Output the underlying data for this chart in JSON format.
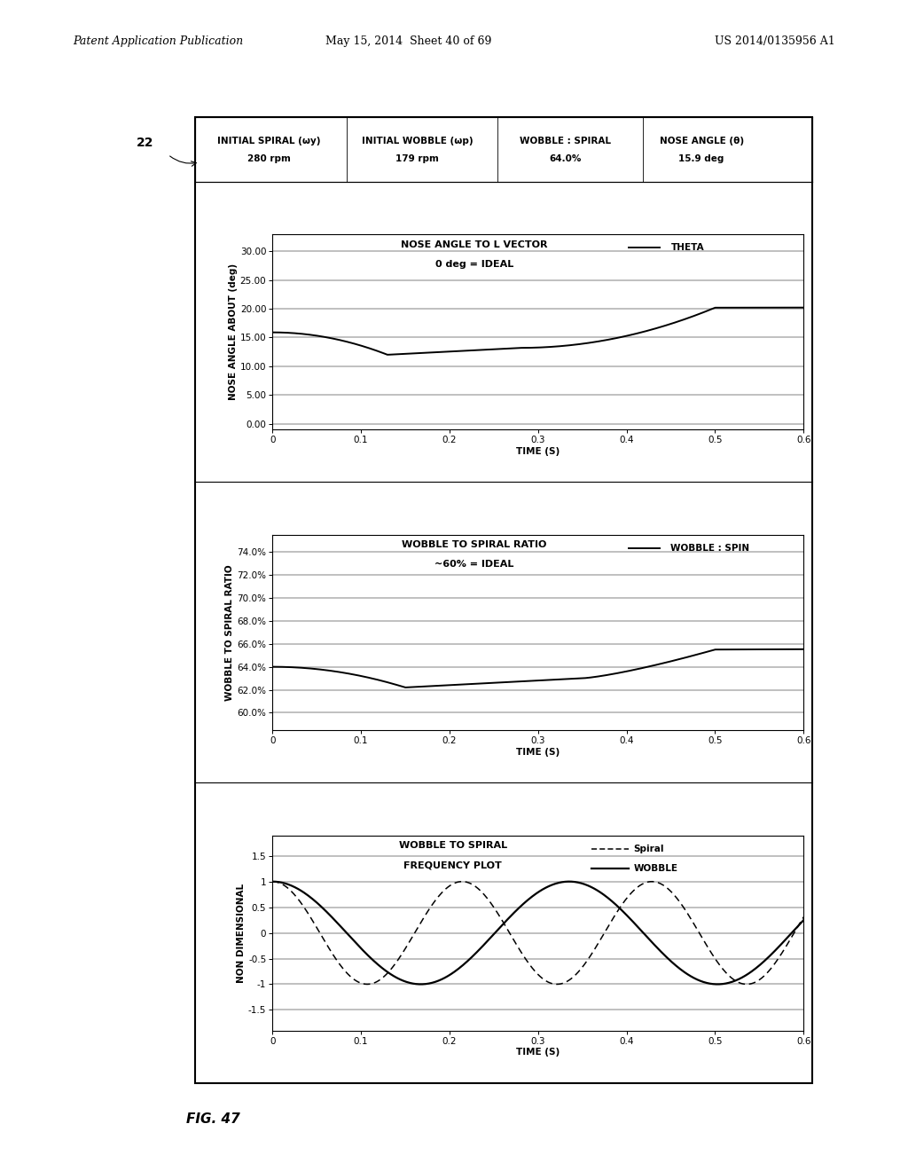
{
  "header": {
    "col1_label": "INITIAL SPIRAL (ωy)",
    "col1_value": "280 rpm",
    "col2_label": "INITIAL WOBBLE (ωp)",
    "col2_value": "179 rpm",
    "col3_label": "WOBBLE : SPIRAL",
    "col3_value": "64.0%",
    "col4_label": "NOSE ANGLE (θ)",
    "col4_value": "15.9 deg"
  },
  "plot1": {
    "title_line1": "NOSE ANGLE TO L VECTOR",
    "title_line2": "0 deg = IDEAL",
    "legend_label": "THETA",
    "ylabel": "NOSE ANGLE ABOUT (deg)",
    "xlabel": "TIME (S)",
    "yticks": [
      0.0,
      5.0,
      10.0,
      15.0,
      20.0,
      25.0,
      30.0
    ],
    "ytick_labels": [
      "0.00",
      "5.00",
      "10.00",
      "15.00",
      "20.00",
      "25.00",
      "30.00"
    ],
    "xticks": [
      0,
      0.1,
      0.2,
      0.3,
      0.4,
      0.5,
      0.6
    ],
    "ylim": [
      -1.0,
      33.0
    ],
    "xlim": [
      0,
      0.6
    ]
  },
  "plot2": {
    "title_line1": "WOBBLE TO SPIRAL RATIO",
    "title_line2": "~60% = IDEAL",
    "legend_label": "WOBBLE : SPIN",
    "ylabel": "WOBBLE TO SPIRAL RATIO",
    "xlabel": "TIME (S)",
    "yticks": [
      60.0,
      62.0,
      64.0,
      66.0,
      68.0,
      70.0,
      72.0,
      74.0
    ],
    "ytick_labels": [
      "60.0%",
      "62.0%",
      "64.0%",
      "66.0%",
      "68.0%",
      "70.0%",
      "72.0%",
      "74.0%"
    ],
    "xticks": [
      0,
      0.1,
      0.2,
      0.3,
      0.4,
      0.5,
      0.6
    ],
    "ylim": [
      58.5,
      75.5
    ],
    "xlim": [
      0,
      0.6
    ]
  },
  "plot3": {
    "title_line1": "WOBBLE TO SPIRAL",
    "title_line2": "FREQUENCY PLOT",
    "legend_spiral": "Spiral",
    "legend_wobble": "WOBBLE",
    "ylabel": "NON DIMENSIONAL",
    "xlabel": "TIME (S)",
    "yticks": [
      -1.5,
      -1.0,
      -0.5,
      0,
      0.5,
      1.0,
      1.5
    ],
    "ytick_labels": [
      "-1.5",
      "-1",
      "-0.5",
      "0",
      "0.5",
      "1",
      "1.5"
    ],
    "xticks": [
      0,
      0.1,
      0.2,
      0.3,
      0.4,
      0.5,
      0.6
    ],
    "ylim": [
      -1.9,
      1.9
    ],
    "xlim": [
      0,
      0.6
    ]
  },
  "fig_label": "FIG. 47",
  "patent_header_left": "Patent Application Publication",
  "patent_header_mid": "May 15, 2014  Sheet 40 of 69",
  "patent_header_right": "US 2014/0135956 A1",
  "ref_number": "22",
  "bg_color": "#ffffff"
}
